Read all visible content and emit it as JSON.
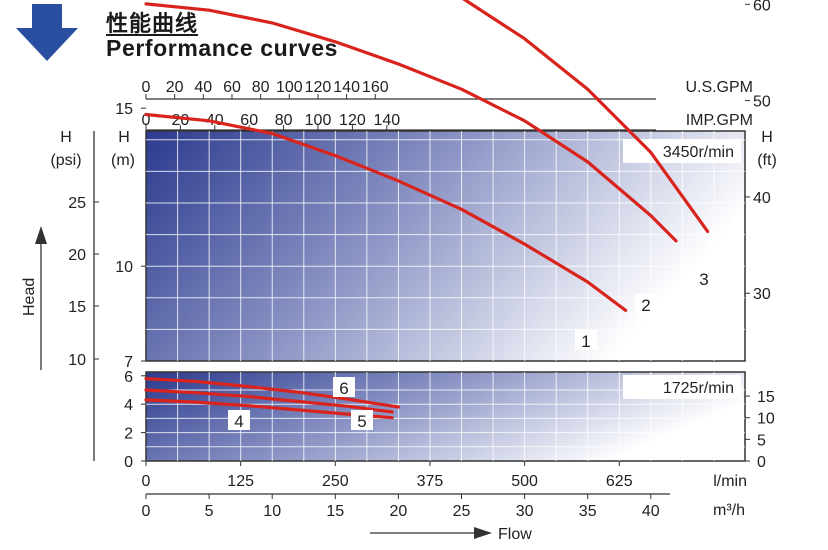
{
  "header": {
    "title_cn": "性能曲线",
    "title_en": "Performance curves",
    "icon": "down-arrow-icon",
    "icon_color": "#2a4fa0"
  },
  "chart_data": {
    "type": "line",
    "colors": {
      "curve": "#d9231d",
      "gradient_dark": "#2b3a8e",
      "gradient_light": "#ffffff",
      "grid": "#ffffff"
    },
    "top_axes": {
      "us_gpm": {
        "label": "U.S.GPM",
        "ticks": [
          "0",
          "20",
          "40",
          "60",
          "80",
          "100",
          "120",
          "140",
          "160"
        ]
      },
      "imp_gpm": {
        "label": "IMP.GPM",
        "ticks": [
          "0",
          "20",
          "40",
          "60",
          "80",
          "100",
          "120",
          "140"
        ]
      }
    },
    "bottom_axes": {
      "lmin": {
        "label": "l/min",
        "ticks": [
          "0",
          "125",
          "250",
          "375",
          "500",
          "625"
        ]
      },
      "m3h": {
        "label": "m³/h",
        "ticks": [
          "0",
          "5",
          "10",
          "15",
          "20",
          "25",
          "30",
          "35",
          "40"
        ]
      }
    },
    "flow_label": "Flow",
    "head_label": "Head",
    "upper_panel": {
      "speed": "3450r/min",
      "psi": {
        "label_top": "H",
        "label_unit": "(psi)",
        "ticks": [
          "10",
          "15",
          "20",
          "25"
        ]
      },
      "m": {
        "label_top": "H",
        "label_unit": "(m)",
        "ticks": [
          "7",
          "10",
          "15"
        ]
      },
      "ft": {
        "label_top": "H",
        "label_unit": "(ft)",
        "ticks": [
          "30",
          "40",
          "50",
          "60"
        ]
      },
      "curves": [
        {
          "name": "1",
          "x": [
            0,
            5,
            10,
            15,
            20,
            25,
            30,
            35,
            38
          ],
          "y": [
            14.8,
            14.6,
            14.2,
            13.5,
            12.7,
            11.8,
            10.7,
            9.5,
            8.6
          ]
        },
        {
          "name": "2",
          "x": [
            0,
            5,
            10,
            15,
            20,
            25,
            30,
            35,
            40,
            42
          ],
          "y": [
            18.3,
            18.1,
            17.7,
            17.1,
            16.4,
            15.6,
            14.6,
            13.3,
            11.6,
            10.8
          ]
        },
        {
          "name": "3",
          "x": [
            0,
            5,
            10,
            15,
            20,
            25,
            30,
            35,
            40,
            44.5
          ],
          "y": [
            21.4,
            21.3,
            21.0,
            20.4,
            19.6,
            18.5,
            17.2,
            15.6,
            13.6,
            11.1
          ]
        }
      ],
      "curve_labels": [
        "1",
        "2",
        "3"
      ]
    },
    "lower_panel": {
      "speed": "1725r/min",
      "m": {
        "ticks": [
          "0",
          "2",
          "4",
          "6"
        ]
      },
      "ft": {
        "ticks": [
          "0",
          "5",
          "10",
          "15"
        ]
      },
      "curves": [
        {
          "name": "4",
          "x": [
            0,
            4,
            8,
            12,
            16,
            19.5
          ],
          "y": [
            4.3,
            4.15,
            3.9,
            3.6,
            3.3,
            3.05
          ]
        },
        {
          "name": "5",
          "x": [
            0,
            4,
            8,
            12,
            16,
            19.5
          ],
          "y": [
            5.0,
            4.8,
            4.55,
            4.2,
            3.85,
            3.45
          ]
        },
        {
          "name": "6",
          "x": [
            0,
            4,
            8,
            12,
            16,
            20
          ],
          "y": [
            5.8,
            5.6,
            5.25,
            4.85,
            4.35,
            3.8
          ]
        }
      ],
      "curve_labels": [
        "4",
        "5",
        "6"
      ]
    }
  }
}
